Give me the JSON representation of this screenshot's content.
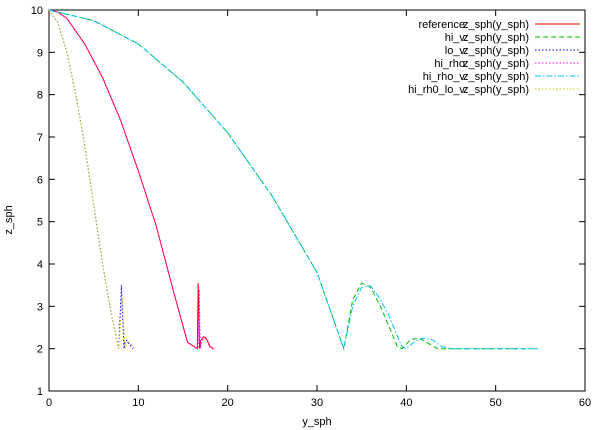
{
  "chart_data": {
    "type": "line",
    "title": "",
    "xlabel": "y_sph",
    "ylabel": "z_sph",
    "xlim": [
      0,
      60
    ],
    "ylim": [
      1,
      10
    ],
    "x_ticks": [
      0,
      10,
      20,
      30,
      40,
      50,
      60
    ],
    "y_ticks": [
      1,
      2,
      3,
      4,
      5,
      6,
      7,
      8,
      9,
      10
    ],
    "grid": false,
    "legend_position": "top-right",
    "series": [
      {
        "name": "reference:",
        "expr": "z_sph(y_sph)",
        "color": "#ff0000",
        "dash": "solid",
        "x": [
          0,
          1,
          2,
          4,
          6,
          8,
          10,
          12,
          14,
          15.5,
          16.6,
          16.7,
          16.85,
          17.0,
          17.3,
          17.6,
          18.0,
          18.4
        ],
        "y": [
          10,
          9.95,
          9.8,
          9.2,
          8.4,
          7.4,
          6.2,
          4.9,
          3.3,
          2.15,
          2.0,
          3.55,
          2.0,
          2.2,
          2.28,
          2.25,
          2.05,
          2.0
        ]
      },
      {
        "name": "hi_v:",
        "expr": "z_sph(y_sph)",
        "color": "#00c000",
        "dash": "dashed",
        "x": [
          0,
          5,
          10,
          15,
          20,
          25,
          30,
          33,
          34,
          35,
          36,
          37,
          38,
          39,
          39.5,
          40.5,
          41.5,
          42.5,
          43.5,
          45,
          50,
          54
        ],
        "y": [
          10,
          9.75,
          9.2,
          8.3,
          7.1,
          5.6,
          3.8,
          2.0,
          3.15,
          3.55,
          3.45,
          3.05,
          2.55,
          2.05,
          2.0,
          2.22,
          2.25,
          2.12,
          2.0,
          2.0,
          2.0,
          2.0
        ]
      },
      {
        "name": "lo_v:",
        "expr": "z_sph(y_sph)",
        "color": "#0000ff",
        "dash": "dotted",
        "x": [
          0,
          1,
          2,
          3,
          4,
          5,
          6,
          7,
          7.8,
          8.1,
          8.4,
          8.5,
          8.7,
          9.0,
          9.4
        ],
        "y": [
          10,
          9.7,
          9.0,
          8.0,
          6.8,
          5.4,
          4.0,
          2.8,
          2.0,
          3.5,
          2.0,
          2.15,
          2.2,
          2.1,
          2.0
        ]
      },
      {
        "name": "hi_rho:",
        "expr": "z_sph(y_sph)",
        "color": "#ff00ff",
        "dash": "dotted",
        "x": [
          0,
          1,
          2,
          4,
          6,
          8,
          10,
          12,
          14,
          15.5,
          16.7,
          16.8,
          16.95,
          17.1,
          17.4,
          17.7,
          18.1,
          18.5
        ],
        "y": [
          10,
          9.95,
          9.8,
          9.2,
          8.4,
          7.4,
          6.2,
          4.9,
          3.3,
          2.15,
          2.0,
          3.4,
          2.0,
          2.18,
          2.25,
          2.22,
          2.05,
          2.0
        ]
      },
      {
        "name": "hi_rho_v:",
        "expr": "z_sph(y_sph)",
        "color": "#00c0ff",
        "dash": "dashdot",
        "x": [
          0,
          5,
          10,
          15,
          20,
          25,
          30,
          33,
          34,
          35,
          36,
          37,
          38,
          39.5,
          40,
          41,
          42,
          43,
          44,
          45,
          50,
          55
        ],
        "y": [
          10,
          9.75,
          9.2,
          8.3,
          7.1,
          5.6,
          3.8,
          2.0,
          3.0,
          3.45,
          3.48,
          3.2,
          2.8,
          2.05,
          2.0,
          2.18,
          2.25,
          2.2,
          2.05,
          2.0,
          2.0,
          2.0
        ]
      },
      {
        "name": "hi_rh0_lo_v:",
        "expr": "z_sph(y_sph)",
        "color": "#c8c800",
        "dash": "dotted",
        "x": [
          0,
          1,
          2,
          3,
          4,
          5,
          6,
          7,
          7.8,
          8.2,
          8.5,
          8.7,
          8.9,
          9.2,
          9.6
        ],
        "y": [
          10,
          9.7,
          9.0,
          8.0,
          6.8,
          5.4,
          4.0,
          2.8,
          2.0,
          3.2,
          2.0,
          2.12,
          2.18,
          2.1,
          2.0
        ]
      }
    ]
  }
}
